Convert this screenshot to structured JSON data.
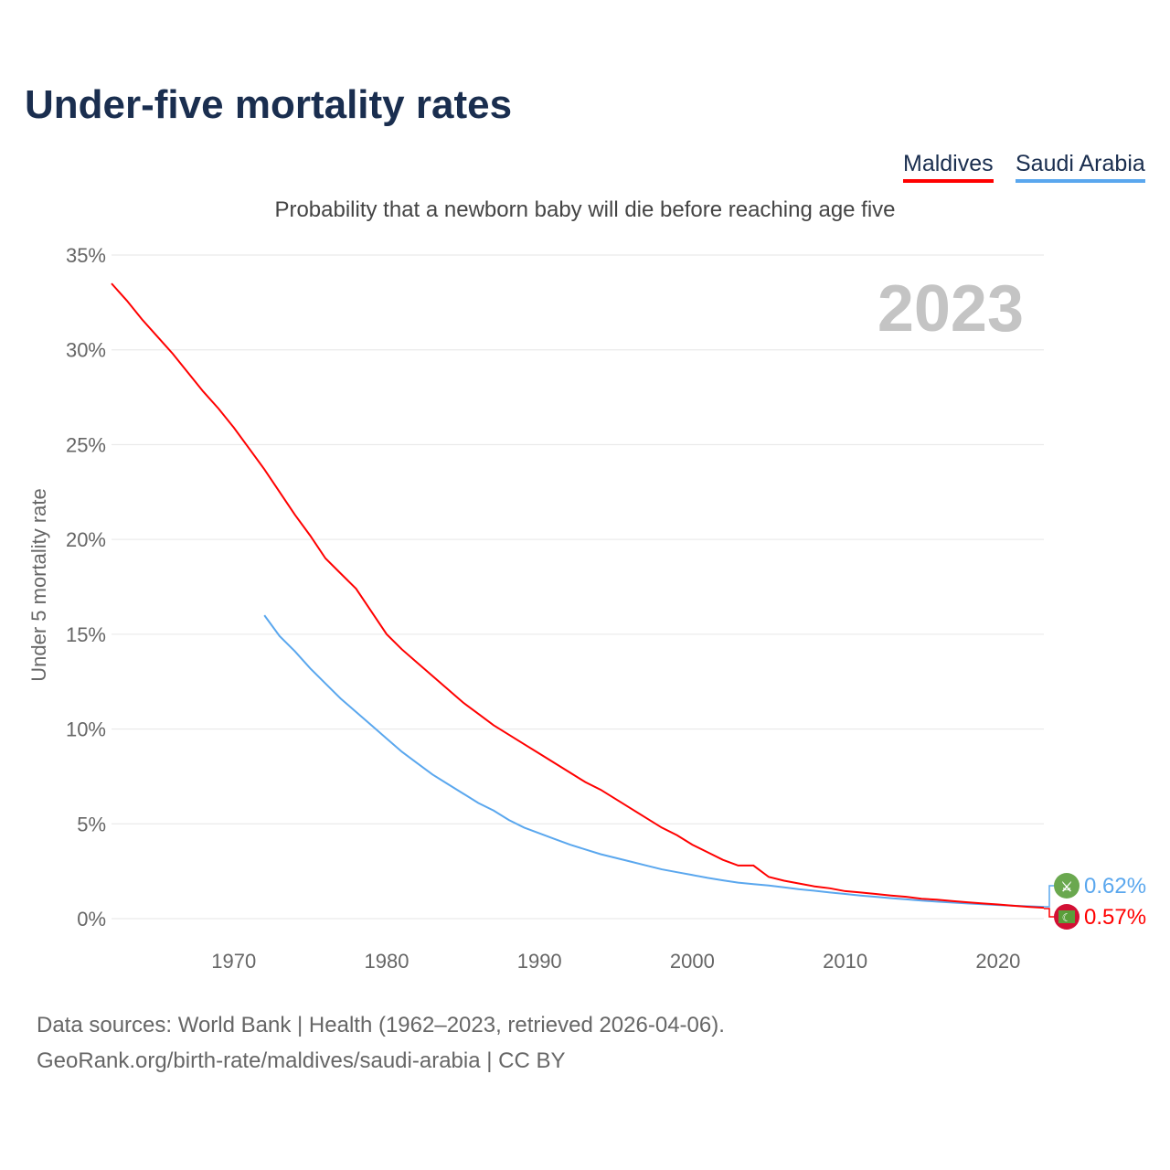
{
  "chart_data": {
    "type": "line",
    "title": "Under-five mortality rates",
    "subtitle": "Probability that a newborn baby will die before reaching age five",
    "ylabel": "Under 5 mortality rate",
    "xlabel": "",
    "ylim": [
      0,
      35
    ],
    "xlim": [
      1962,
      2023
    ],
    "yticks": [
      "0%",
      "5%",
      "10%",
      "15%",
      "20%",
      "25%",
      "30%",
      "35%"
    ],
    "ytick_values": [
      0,
      5,
      10,
      15,
      20,
      25,
      30,
      35
    ],
    "xticks": [
      1970,
      1980,
      1990,
      2000,
      2010,
      2020
    ],
    "year_label": "2023",
    "legend": "top-right",
    "series": [
      {
        "name": "Maldives",
        "color": "#ff0000",
        "end_label": "0.57%",
        "x": [
          1962,
          1963,
          1964,
          1965,
          1966,
          1967,
          1968,
          1969,
          1970,
          1971,
          1972,
          1973,
          1974,
          1975,
          1976,
          1977,
          1978,
          1979,
          1980,
          1981,
          1982,
          1983,
          1984,
          1985,
          1986,
          1987,
          1988,
          1989,
          1990,
          1991,
          1992,
          1993,
          1994,
          1995,
          1996,
          1997,
          1998,
          1999,
          2000,
          2001,
          2002,
          2003,
          2004,
          2005,
          2006,
          2007,
          2008,
          2009,
          2010,
          2011,
          2012,
          2013,
          2014,
          2015,
          2016,
          2017,
          2018,
          2019,
          2020,
          2021,
          2022,
          2023
        ],
        "values": [
          33.5,
          32.6,
          31.6,
          30.7,
          29.8,
          28.8,
          27.8,
          26.9,
          25.9,
          24.8,
          23.7,
          22.5,
          21.3,
          20.2,
          19.0,
          18.2,
          17.4,
          16.2,
          15.0,
          14.2,
          13.5,
          12.8,
          12.1,
          11.4,
          10.8,
          10.2,
          9.7,
          9.2,
          8.7,
          8.2,
          7.7,
          7.2,
          6.8,
          6.3,
          5.8,
          5.3,
          4.8,
          4.4,
          3.9,
          3.5,
          3.1,
          2.8,
          2.8,
          2.2,
          2.0,
          1.85,
          1.7,
          1.6,
          1.45,
          1.38,
          1.3,
          1.22,
          1.15,
          1.05,
          1.0,
          0.93,
          0.86,
          0.8,
          0.75,
          0.68,
          0.62,
          0.57
        ]
      },
      {
        "name": "Saudi Arabia",
        "color": "#5aa7ee",
        "end_label": "0.62%",
        "x": [
          1972,
          1973,
          1974,
          1975,
          1976,
          1977,
          1978,
          1979,
          1980,
          1981,
          1982,
          1983,
          1984,
          1985,
          1986,
          1987,
          1988,
          1989,
          1990,
          1991,
          1992,
          1993,
          1994,
          1995,
          1996,
          1997,
          1998,
          1999,
          2000,
          2001,
          2002,
          2003,
          2004,
          2005,
          2006,
          2007,
          2008,
          2009,
          2010,
          2011,
          2012,
          2013,
          2014,
          2015,
          2016,
          2017,
          2018,
          2019,
          2020,
          2021,
          2022,
          2023
        ],
        "values": [
          16.0,
          14.9,
          14.1,
          13.2,
          12.4,
          11.6,
          10.9,
          10.2,
          9.5,
          8.8,
          8.2,
          7.6,
          7.1,
          6.6,
          6.1,
          5.7,
          5.2,
          4.8,
          4.5,
          4.2,
          3.9,
          3.65,
          3.4,
          3.2,
          3.0,
          2.8,
          2.6,
          2.45,
          2.3,
          2.15,
          2.02,
          1.9,
          1.82,
          1.75,
          1.65,
          1.55,
          1.47,
          1.38,
          1.3,
          1.22,
          1.15,
          1.08,
          1.02,
          0.95,
          0.9,
          0.85,
          0.8,
          0.76,
          0.72,
          0.68,
          0.65,
          0.62
        ]
      }
    ]
  },
  "footer": {
    "line1": "Data sources: World Bank | Health (1962–2023, retrieved 2026-04-06).",
    "line2": "GeoRank.org/birth-rate/maldives/saudi-arabia | CC BY"
  }
}
